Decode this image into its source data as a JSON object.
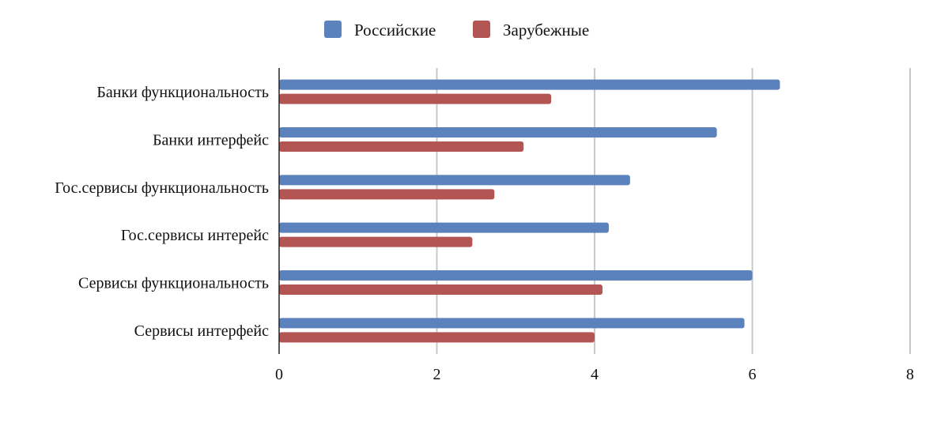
{
  "chart_data": {
    "type": "bar",
    "orientation": "horizontal",
    "categories": [
      "Банки функциональность",
      "Банки интерфейс",
      "Гос.сервисы функциональность",
      "Гос.сервисы интерейс",
      "Сервисы функциональность",
      "Сервисы интерфейс"
    ],
    "series": [
      {
        "name": "Российские",
        "color": "#5b82bd",
        "values": [
          6.35,
          5.55,
          4.45,
          4.18,
          6.0,
          5.9
        ]
      },
      {
        "name": "Зарубежные",
        "color": "#b35653",
        "values": [
          3.45,
          3.1,
          2.73,
          2.45,
          4.1,
          4.0
        ]
      }
    ],
    "xlim": [
      0,
      8
    ],
    "xticks": [
      "0",
      "2",
      "4",
      "6",
      "8"
    ],
    "grid": true,
    "legend_position": "top-center",
    "title": "",
    "xlabel": "",
    "ylabel": ""
  }
}
